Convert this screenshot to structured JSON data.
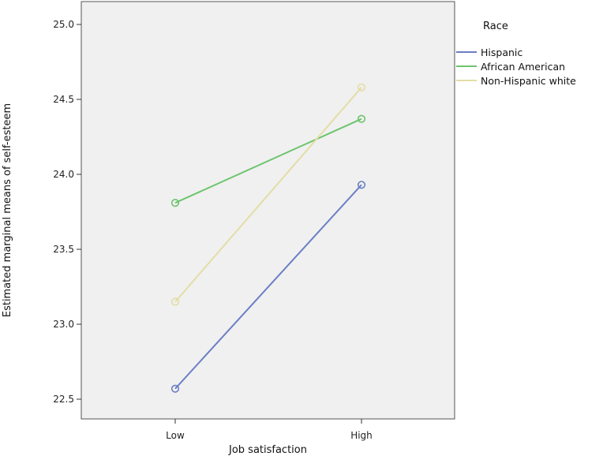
{
  "chart_data": {
    "type": "line",
    "xlabel": "Job satisfaction",
    "ylabel": "Estimated marginal means of self-esteem",
    "categories": [
      "Low",
      "High"
    ],
    "ylim": [
      22.5,
      25.0
    ],
    "yticks": [
      "22.5",
      "23.0",
      "23.5",
      "24.0",
      "24.5",
      "25.0"
    ],
    "legend_title": "Race",
    "legend_position": "right",
    "grid": false,
    "background": "#f0f0f0",
    "series": [
      {
        "name": "Hispanic",
        "color": "#6b7fc4",
        "values": [
          22.57,
          23.93
        ]
      },
      {
        "name": "African American",
        "color": "#6cc46c",
        "values": [
          23.81,
          24.37
        ]
      },
      {
        "name": "Non-Hispanic white",
        "color": "#e3dda5",
        "values": [
          23.15,
          24.58
        ]
      }
    ]
  }
}
